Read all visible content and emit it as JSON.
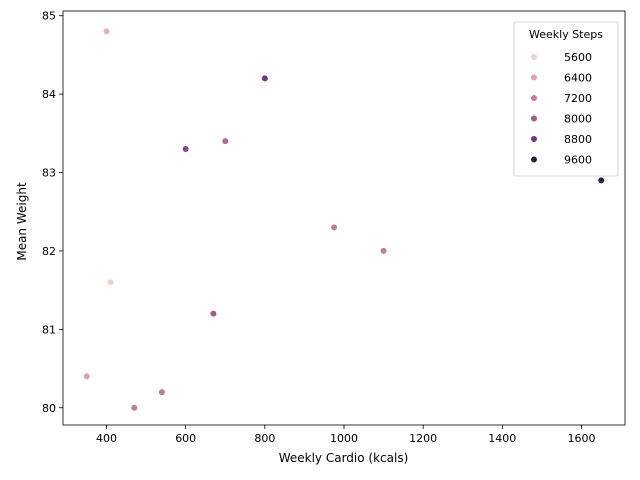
{
  "chart_data": {
    "type": "scatter",
    "xlabel": "Weekly Cardio (kcals)",
    "ylabel": "Mean Weight",
    "xlim": [
      290,
      1710
    ],
    "ylim": [
      79.78,
      85.06
    ],
    "xticks": [
      400,
      600,
      800,
      1000,
      1200,
      1400,
      1600
    ],
    "yticks": [
      80,
      81,
      82,
      83,
      84,
      85
    ],
    "grid": false,
    "legend": {
      "title": "Weekly Steps",
      "placement": "top-right",
      "entries": [
        {
          "label": "5600",
          "color": "#edd1cb"
        },
        {
          "label": "6400",
          "color": "#dfa2af"
        },
        {
          "label": "7200",
          "color": "#c67c96"
        },
        {
          "label": "8000",
          "color": "#a45b8e"
        },
        {
          "label": "8800",
          "color": "#74367c"
        },
        {
          "label": "9600",
          "color": "#2d1e3e"
        }
      ]
    },
    "points": [
      {
        "x": 400,
        "y": 84.8,
        "steps": 6200,
        "color": "#e3b2b8"
      },
      {
        "x": 800,
        "y": 84.2,
        "steps": 8800,
        "color": "#74367c"
      },
      {
        "x": 700,
        "y": 83.4,
        "steps": 7700,
        "color": "#b06b92"
      },
      {
        "x": 600,
        "y": 83.3,
        "steps": 8400,
        "color": "#8a4682"
      },
      {
        "x": 1650,
        "y": 82.9,
        "steps": 9900,
        "color": "#2d1e3e"
      },
      {
        "x": 975,
        "y": 82.3,
        "steps": 7100,
        "color": "#c47b98"
      },
      {
        "x": 1100,
        "y": 82.0,
        "steps": 7100,
        "color": "#c47b98"
      },
      {
        "x": 410,
        "y": 81.6,
        "steps": 5600,
        "color": "#edd1cb"
      },
      {
        "x": 670,
        "y": 81.2,
        "steps": 7900,
        "color": "#a45b8e"
      },
      {
        "x": 350,
        "y": 80.4,
        "steps": 6500,
        "color": "#d9a0ab"
      },
      {
        "x": 540,
        "y": 80.2,
        "steps": 7200,
        "color": "#c47b98"
      },
      {
        "x": 470,
        "y": 80.0,
        "steps": 7100,
        "color": "#c47b98"
      }
    ]
  }
}
